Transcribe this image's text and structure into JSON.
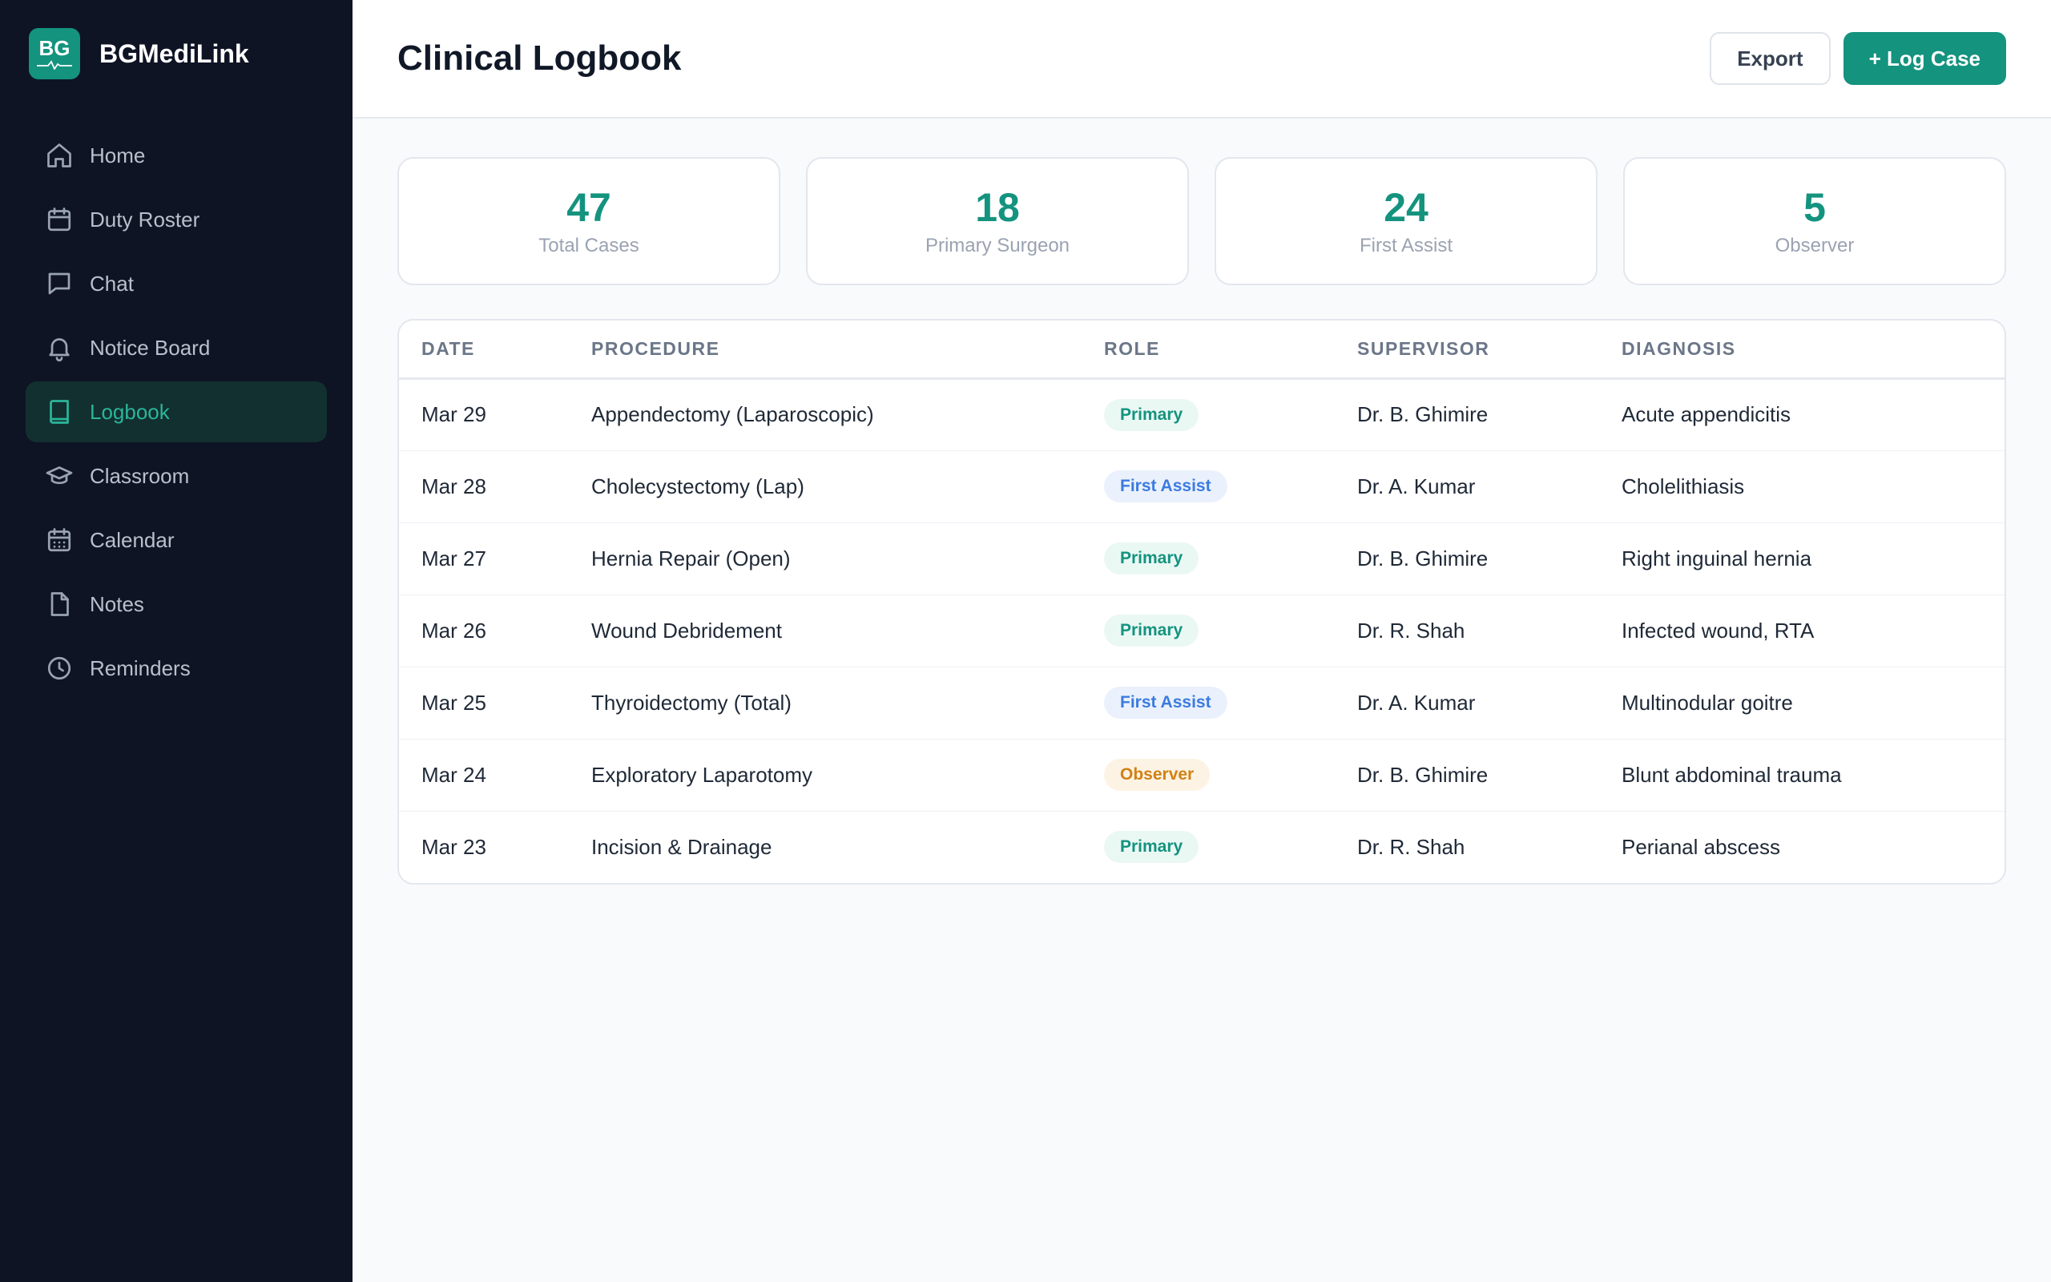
{
  "brand": {
    "logo_text": "BG",
    "name": "BGMediLink",
    "accent": "#14937f"
  },
  "sidebar": {
    "items": [
      {
        "label": "Home",
        "icon": "home-icon",
        "active": false
      },
      {
        "label": "Duty Roster",
        "icon": "calendar-icon",
        "active": false
      },
      {
        "label": "Chat",
        "icon": "chat-icon",
        "active": false
      },
      {
        "label": "Notice Board",
        "icon": "bell-icon",
        "active": false
      },
      {
        "label": "Logbook",
        "icon": "book-icon",
        "active": true
      },
      {
        "label": "Classroom",
        "icon": "graduation-cap-icon",
        "active": false
      },
      {
        "label": "Calendar",
        "icon": "calendar-grid-icon",
        "active": false
      },
      {
        "label": "Notes",
        "icon": "file-icon",
        "active": false
      },
      {
        "label": "Reminders",
        "icon": "clock-icon",
        "active": false
      }
    ]
  },
  "header": {
    "title": "Clinical Logbook",
    "export_label": "Export",
    "log_case_label": "+ Log Case"
  },
  "stats": [
    {
      "value": "47",
      "label": "Total Cases"
    },
    {
      "value": "18",
      "label": "Primary Surgeon"
    },
    {
      "value": "24",
      "label": "First Assist"
    },
    {
      "value": "5",
      "label": "Observer"
    }
  ],
  "table": {
    "columns": [
      "DATE",
      "PROCEDURE",
      "ROLE",
      "SUPERVISOR",
      "DIAGNOSIS"
    ],
    "rows": [
      {
        "date": "Mar 29",
        "procedure": "Appendectomy (Laparoscopic)",
        "role": "Primary",
        "supervisor": "Dr. B. Ghimire",
        "diagnosis": "Acute appendicitis"
      },
      {
        "date": "Mar 28",
        "procedure": "Cholecystectomy (Lap)",
        "role": "First Assist",
        "supervisor": "Dr. A. Kumar",
        "diagnosis": "Cholelithiasis"
      },
      {
        "date": "Mar 27",
        "procedure": "Hernia Repair (Open)",
        "role": "Primary",
        "supervisor": "Dr. B. Ghimire",
        "diagnosis": "Right inguinal hernia"
      },
      {
        "date": "Mar 26",
        "procedure": "Wound Debridement",
        "role": "Primary",
        "supervisor": "Dr. R. Shah",
        "diagnosis": "Infected wound, RTA"
      },
      {
        "date": "Mar 25",
        "procedure": "Thyroidectomy (Total)",
        "role": "First Assist",
        "supervisor": "Dr. A. Kumar",
        "diagnosis": "Multinodular goitre"
      },
      {
        "date": "Mar 24",
        "procedure": "Exploratory Laparotomy",
        "role": "Observer",
        "supervisor": "Dr. B. Ghimire",
        "diagnosis": "Blunt abdominal trauma"
      },
      {
        "date": "Mar 23",
        "procedure": "Incision & Drainage",
        "role": "Primary",
        "supervisor": "Dr. R. Shah",
        "diagnosis": "Perianal abscess"
      }
    ]
  }
}
